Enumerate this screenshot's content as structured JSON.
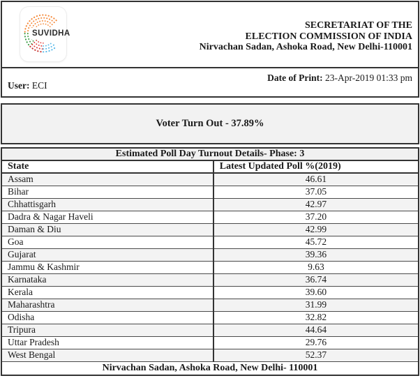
{
  "colors": {
    "section_border": "#333333",
    "row_line": "#4a4a4a",
    "band_bg": "#f2f2f2",
    "row_alt_bg": "#f3f3f3",
    "text": "#1a1a1a",
    "logo_orange": "#f58634",
    "logo_green": "#3f9e47",
    "logo_red": "#e23b37",
    "logo_dark_red": "#c62f2b",
    "logo_blue": "#55b8e9"
  },
  "header": {
    "logo_label": "SUVIDHA",
    "org_lines": [
      "SECRETARIAT OF THE",
      "ELECTION COMMISSION OF INDIA",
      "Nirvachan Sadan, Ashoka Road, New Delhi-110001"
    ]
  },
  "print_info": {
    "user_label": "User:",
    "user_value": "ECI",
    "date_label": "Date of Print:",
    "date_value": "23-Apr-2019 01:33 pm"
  },
  "summary": {
    "voter_turnout": "Voter Turn Out - 37.89%"
  },
  "table": {
    "caption": "Estimated Poll Day Turnout Details- Phase: 3",
    "columns": [
      "State",
      "Latest Updated Poll %(2019)"
    ],
    "rows": [
      {
        "state": "Assam",
        "poll": "46.61"
      },
      {
        "state": "Bihar",
        "poll": "37.05"
      },
      {
        "state": "Chhattisgarh",
        "poll": "42.97"
      },
      {
        "state": "Dadra & Nagar Haveli",
        "poll": "37.20"
      },
      {
        "state": "Daman & Diu",
        "poll": "42.99"
      },
      {
        "state": "Goa",
        "poll": "45.72"
      },
      {
        "state": "Gujarat",
        "poll": "39.36"
      },
      {
        "state": "Jammu & Kashmir",
        "poll": "9.63"
      },
      {
        "state": "Karnataka",
        "poll": "36.74"
      },
      {
        "state": "Kerala",
        "poll": "39.60"
      },
      {
        "state": "Maharashtra",
        "poll": "31.99"
      },
      {
        "state": "Odisha",
        "poll": "32.82"
      },
      {
        "state": "Tripura",
        "poll": "44.64"
      },
      {
        "state": "Uttar Pradesh",
        "poll": "29.76"
      },
      {
        "state": "West Bengal",
        "poll": "52.37"
      }
    ],
    "footer": "Nirvachan Sadan, Ashoka Road, New Delhi- 110001"
  }
}
